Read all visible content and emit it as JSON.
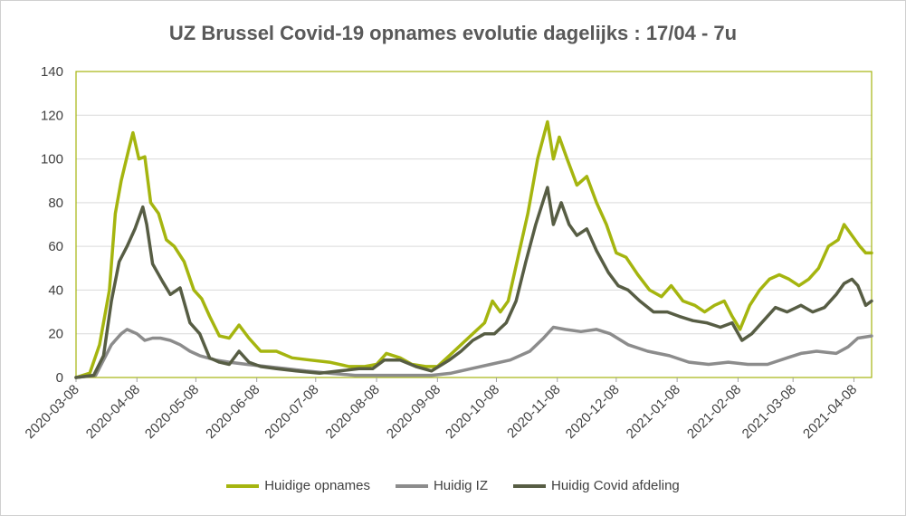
{
  "chart_data": {
    "type": "line",
    "title": "UZ Brussel Covid-19 opnames evolutie dagelijks : 17/04 - 7u",
    "xlabel": "",
    "ylabel": "",
    "ylim": [
      0,
      140
    ],
    "yticks": [
      0,
      20,
      40,
      60,
      80,
      100,
      120,
      140
    ],
    "x_start": "2020-03-08",
    "x_end": "2021-04-17",
    "xticks": [
      "2020-03-08",
      "2020-04-08",
      "2020-05-08",
      "2020-06-08",
      "2020-07-08",
      "2020-08-08",
      "2020-09-08",
      "2020-10-08",
      "2020-11-08",
      "2020-12-08",
      "2021-01-08",
      "2021-02-08",
      "2021-03-08",
      "2021-04-08"
    ],
    "grid": "horizontal",
    "legend": "bottom",
    "series": [
      {
        "name": "Huidige opnames",
        "color": "#a5b50f",
        "points": [
          [
            "2020-03-08",
            0
          ],
          [
            "2020-03-15",
            2
          ],
          [
            "2020-03-20",
            15
          ],
          [
            "2020-03-25",
            40
          ],
          [
            "2020-03-28",
            75
          ],
          [
            "2020-03-31",
            90
          ],
          [
            "2020-04-04",
            105
          ],
          [
            "2020-04-06",
            112
          ],
          [
            "2020-04-09",
            100
          ],
          [
            "2020-04-12",
            101
          ],
          [
            "2020-04-15",
            80
          ],
          [
            "2020-04-19",
            75
          ],
          [
            "2020-04-23",
            63
          ],
          [
            "2020-04-27",
            60
          ],
          [
            "2020-05-02",
            53
          ],
          [
            "2020-05-07",
            40
          ],
          [
            "2020-05-11",
            36
          ],
          [
            "2020-05-15",
            28
          ],
          [
            "2020-05-20",
            19
          ],
          [
            "2020-05-25",
            18
          ],
          [
            "2020-05-30",
            24
          ],
          [
            "2020-06-04",
            18
          ],
          [
            "2020-06-10",
            12
          ],
          [
            "2020-06-18",
            12
          ],
          [
            "2020-06-26",
            9
          ],
          [
            "2020-07-05",
            8
          ],
          [
            "2020-07-15",
            7
          ],
          [
            "2020-07-25",
            5
          ],
          [
            "2020-08-02",
            5
          ],
          [
            "2020-08-08",
            6
          ],
          [
            "2020-08-13",
            11
          ],
          [
            "2020-08-20",
            9
          ],
          [
            "2020-08-26",
            6
          ],
          [
            "2020-09-02",
            5
          ],
          [
            "2020-09-08",
            5
          ],
          [
            "2020-09-14",
            10
          ],
          [
            "2020-09-20",
            15
          ],
          [
            "2020-09-26",
            20
          ],
          [
            "2020-10-02",
            25
          ],
          [
            "2020-10-06",
            35
          ],
          [
            "2020-10-10",
            30
          ],
          [
            "2020-10-14",
            35
          ],
          [
            "2020-10-19",
            55
          ],
          [
            "2020-10-24",
            75
          ],
          [
            "2020-10-29",
            100
          ],
          [
            "2020-11-03",
            117
          ],
          [
            "2020-11-06",
            100
          ],
          [
            "2020-11-09",
            110
          ],
          [
            "2020-11-13",
            100
          ],
          [
            "2020-11-18",
            88
          ],
          [
            "2020-11-23",
            92
          ],
          [
            "2020-11-28",
            80
          ],
          [
            "2020-12-03",
            70
          ],
          [
            "2020-12-08",
            57
          ],
          [
            "2020-12-13",
            55
          ],
          [
            "2020-12-19",
            47
          ],
          [
            "2020-12-25",
            40
          ],
          [
            "2020-12-31",
            37
          ],
          [
            "2021-01-05",
            42
          ],
          [
            "2021-01-11",
            35
          ],
          [
            "2021-01-17",
            33
          ],
          [
            "2021-01-22",
            30
          ],
          [
            "2021-01-27",
            33
          ],
          [
            "2021-02-01",
            35
          ],
          [
            "2021-02-05",
            28
          ],
          [
            "2021-02-09",
            22
          ],
          [
            "2021-02-14",
            33
          ],
          [
            "2021-02-19",
            40
          ],
          [
            "2021-02-24",
            45
          ],
          [
            "2021-03-01",
            47
          ],
          [
            "2021-03-06",
            45
          ],
          [
            "2021-03-11",
            42
          ],
          [
            "2021-03-16",
            45
          ],
          [
            "2021-03-21",
            50
          ],
          [
            "2021-03-26",
            60
          ],
          [
            "2021-03-31",
            63
          ],
          [
            "2021-04-03",
            70
          ],
          [
            "2021-04-07",
            65
          ],
          [
            "2021-04-11",
            60
          ],
          [
            "2021-04-14",
            57
          ],
          [
            "2021-04-17",
            57
          ]
        ]
      },
      {
        "name": "Huidig IZ",
        "color": "#8c8c8c",
        "points": [
          [
            "2020-03-08",
            0
          ],
          [
            "2020-03-18",
            1
          ],
          [
            "2020-03-22",
            8
          ],
          [
            "2020-03-26",
            15
          ],
          [
            "2020-03-31",
            20
          ],
          [
            "2020-04-03",
            22
          ],
          [
            "2020-04-08",
            20
          ],
          [
            "2020-04-12",
            17
          ],
          [
            "2020-04-16",
            18
          ],
          [
            "2020-04-20",
            18
          ],
          [
            "2020-04-25",
            17
          ],
          [
            "2020-04-30",
            15
          ],
          [
            "2020-05-05",
            12
          ],
          [
            "2020-05-10",
            10
          ],
          [
            "2020-05-18",
            8
          ],
          [
            "2020-05-25",
            7
          ],
          [
            "2020-06-03",
            6
          ],
          [
            "2020-06-13",
            5
          ],
          [
            "2020-06-23",
            4
          ],
          [
            "2020-07-03",
            3
          ],
          [
            "2020-07-15",
            2
          ],
          [
            "2020-07-28",
            1
          ],
          [
            "2020-08-08",
            1
          ],
          [
            "2020-08-22",
            1
          ],
          [
            "2020-09-05",
            1
          ],
          [
            "2020-09-15",
            2
          ],
          [
            "2020-09-25",
            4
          ],
          [
            "2020-10-05",
            6
          ],
          [
            "2020-10-15",
            8
          ],
          [
            "2020-10-25",
            12
          ],
          [
            "2020-11-01",
            18
          ],
          [
            "2020-11-06",
            23
          ],
          [
            "2020-11-12",
            22
          ],
          [
            "2020-11-20",
            21
          ],
          [
            "2020-11-28",
            22
          ],
          [
            "2020-12-05",
            20
          ],
          [
            "2020-12-14",
            15
          ],
          [
            "2020-12-24",
            12
          ],
          [
            "2021-01-04",
            10
          ],
          [
            "2021-01-14",
            7
          ],
          [
            "2021-01-24",
            6
          ],
          [
            "2021-02-03",
            7
          ],
          [
            "2021-02-13",
            6
          ],
          [
            "2021-02-23",
            6
          ],
          [
            "2021-03-05",
            9
          ],
          [
            "2021-03-12",
            11
          ],
          [
            "2021-03-20",
            12
          ],
          [
            "2021-03-30",
            11
          ],
          [
            "2021-04-05",
            14
          ],
          [
            "2021-04-10",
            18
          ],
          [
            "2021-04-17",
            19
          ]
        ]
      },
      {
        "name": "Huidig Covid afdeling",
        "color": "#575d44",
        "points": [
          [
            "2020-03-08",
            0
          ],
          [
            "2020-03-17",
            1
          ],
          [
            "2020-03-22",
            10
          ],
          [
            "2020-03-26",
            35
          ],
          [
            "2020-03-30",
            53
          ],
          [
            "2020-04-03",
            60
          ],
          [
            "2020-04-07",
            68
          ],
          [
            "2020-04-11",
            78
          ],
          [
            "2020-04-13",
            70
          ],
          [
            "2020-04-16",
            52
          ],
          [
            "2020-04-21",
            44
          ],
          [
            "2020-04-25",
            38
          ],
          [
            "2020-04-30",
            41
          ],
          [
            "2020-05-05",
            25
          ],
          [
            "2020-05-10",
            20
          ],
          [
            "2020-05-15",
            9
          ],
          [
            "2020-05-20",
            7
          ],
          [
            "2020-05-25",
            6
          ],
          [
            "2020-05-30",
            12
          ],
          [
            "2020-06-04",
            7
          ],
          [
            "2020-06-10",
            5
          ],
          [
            "2020-06-18",
            4
          ],
          [
            "2020-06-28",
            3
          ],
          [
            "2020-07-10",
            2
          ],
          [
            "2020-07-20",
            3
          ],
          [
            "2020-07-30",
            4
          ],
          [
            "2020-08-06",
            4
          ],
          [
            "2020-08-12",
            8
          ],
          [
            "2020-08-20",
            8
          ],
          [
            "2020-08-28",
            5
          ],
          [
            "2020-09-05",
            3
          ],
          [
            "2020-09-14",
            8
          ],
          [
            "2020-09-20",
            12
          ],
          [
            "2020-09-26",
            17
          ],
          [
            "2020-10-02",
            20
          ],
          [
            "2020-10-07",
            20
          ],
          [
            "2020-10-13",
            25
          ],
          [
            "2020-10-18",
            35
          ],
          [
            "2020-10-23",
            53
          ],
          [
            "2020-10-28",
            70
          ],
          [
            "2020-11-03",
            87
          ],
          [
            "2020-11-06",
            70
          ],
          [
            "2020-11-10",
            80
          ],
          [
            "2020-11-14",
            70
          ],
          [
            "2020-11-18",
            65
          ],
          [
            "2020-11-23",
            68
          ],
          [
            "2020-11-28",
            58
          ],
          [
            "2020-12-04",
            48
          ],
          [
            "2020-12-09",
            42
          ],
          [
            "2020-12-14",
            40
          ],
          [
            "2020-12-20",
            35
          ],
          [
            "2020-12-27",
            30
          ],
          [
            "2021-01-03",
            30
          ],
          [
            "2021-01-09",
            28
          ],
          [
            "2021-01-16",
            26
          ],
          [
            "2021-01-23",
            25
          ],
          [
            "2021-01-30",
            23
          ],
          [
            "2021-02-05",
            25
          ],
          [
            "2021-02-10",
            17
          ],
          [
            "2021-02-15",
            20
          ],
          [
            "2021-02-20",
            25
          ],
          [
            "2021-02-27",
            32
          ],
          [
            "2021-03-05",
            30
          ],
          [
            "2021-03-12",
            33
          ],
          [
            "2021-03-18",
            30
          ],
          [
            "2021-03-24",
            32
          ],
          [
            "2021-03-30",
            38
          ],
          [
            "2021-04-03",
            43
          ],
          [
            "2021-04-07",
            45
          ],
          [
            "2021-04-10",
            42
          ],
          [
            "2021-04-14",
            33
          ],
          [
            "2021-04-17",
            35
          ]
        ]
      }
    ]
  }
}
